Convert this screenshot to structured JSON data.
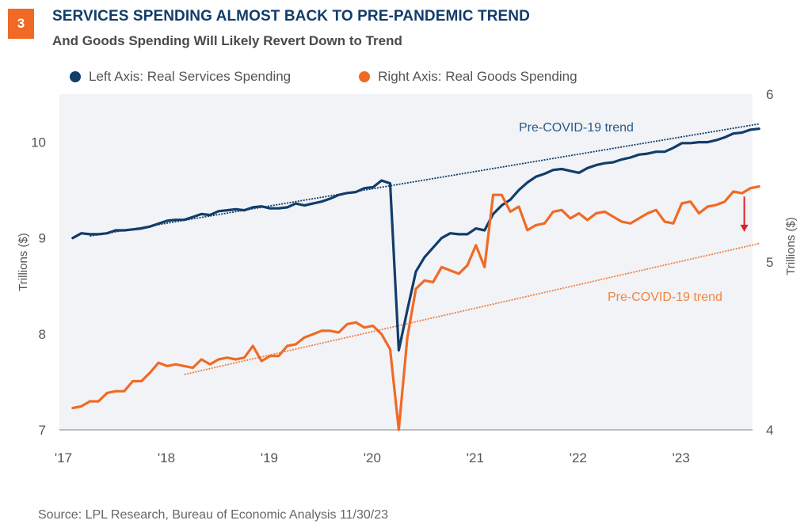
{
  "header": {
    "badge": "3",
    "title": "SERVICES SPENDING ALMOST BACK TO PRE-PANDEMIC TREND",
    "subtitle": "And Goods Spending Will Likely Revert Down to Trend"
  },
  "legend": [
    {
      "label": "Left Axis: Real Services Spending",
      "color": "#123d6b"
    },
    {
      "label": "Right Axis: Real Goods Spending",
      "color": "#f06a25"
    }
  ],
  "source": "Source: LPL Research, Bureau of Economic Analysis  11/30/23",
  "chart_data": {
    "type": "line",
    "title": "SERVICES SPENDING ALMOST BACK TO PRE-PANDEMIC TREND",
    "subtitle": "And Goods Spending Will Likely Revert Down to Trend",
    "x_start": "2017-02",
    "x_end": "2023-10",
    "frequency": "monthly",
    "x_ticks": [
      "'17",
      "'18",
      "'19",
      "'20",
      "'21",
      "'22",
      "'23"
    ],
    "xlim": [
      "2017-01",
      "2023-12"
    ],
    "y_left": {
      "label": "Trillions ($)",
      "lim": [
        7,
        10.5
      ],
      "ticks": [
        "7",
        "8",
        "9",
        "10"
      ]
    },
    "y_right": {
      "label": "Trillions ($)",
      "lim": [
        4,
        6
      ],
      "ticks": [
        "4",
        "5",
        "6"
      ]
    },
    "background": "#f1f3f6",
    "grid": false,
    "legend_position": "top",
    "series": [
      {
        "name": "Left Axis: Real Services Spending",
        "axis": "left",
        "color": "#123d6b",
        "values": [
          9.0,
          9.05,
          9.04,
          9.04,
          9.05,
          9.08,
          9.08,
          9.09,
          9.1,
          9.12,
          9.15,
          9.18,
          9.19,
          9.19,
          9.22,
          9.25,
          9.24,
          9.28,
          9.29,
          9.3,
          9.29,
          9.32,
          9.33,
          9.31,
          9.31,
          9.32,
          9.36,
          9.34,
          9.36,
          9.38,
          9.41,
          9.45,
          9.47,
          9.48,
          9.52,
          9.53,
          9.6,
          9.57,
          7.83,
          8.25,
          8.65,
          8.8,
          8.9,
          9.0,
          9.05,
          9.04,
          9.04,
          9.1,
          9.08,
          9.25,
          9.34,
          9.4,
          9.5,
          9.58,
          9.64,
          9.67,
          9.71,
          9.72,
          9.7,
          9.68,
          9.73,
          9.76,
          9.78,
          9.79,
          9.82,
          9.84,
          9.87,
          9.88,
          9.9,
          9.9,
          9.94,
          9.99,
          9.99,
          10.0,
          10.0,
          10.02,
          10.05,
          10.09,
          10.1,
          10.13,
          10.14
        ]
      },
      {
        "name": "Right Axis: Real Goods Spending",
        "axis": "right",
        "color": "#f06a25",
        "values": [
          4.13,
          4.14,
          4.17,
          4.17,
          4.22,
          4.23,
          4.23,
          4.29,
          4.29,
          4.34,
          4.4,
          4.38,
          4.39,
          4.38,
          4.37,
          4.42,
          4.39,
          4.42,
          4.43,
          4.42,
          4.43,
          4.5,
          4.41,
          4.44,
          4.44,
          4.5,
          4.51,
          4.55,
          4.57,
          4.59,
          4.59,
          4.58,
          4.63,
          4.64,
          4.61,
          4.62,
          4.57,
          4.48,
          4.0,
          4.55,
          4.84,
          4.89,
          4.88,
          4.97,
          4.95,
          4.93,
          4.98,
          5.1,
          4.97,
          5.4,
          5.4,
          5.3,
          5.33,
          5.19,
          5.22,
          5.23,
          5.3,
          5.31,
          5.26,
          5.29,
          5.25,
          5.29,
          5.3,
          5.27,
          5.24,
          5.23,
          5.26,
          5.29,
          5.31,
          5.24,
          5.23,
          5.35,
          5.36,
          5.29,
          5.33,
          5.34,
          5.36,
          5.42,
          5.41,
          5.44,
          5.45
        ]
      }
    ],
    "trend_lines": [
      {
        "name": "Services Pre-COVID-19 trend",
        "axis": "left",
        "color": "#123d6b",
        "start": {
          "month": "2017-04",
          "value": 9.02
        },
        "end": {
          "month": "2023-10",
          "value": 10.19
        },
        "label": "Pre-COVID-19 trend"
      },
      {
        "name": "Goods Pre-COVID-19 trend",
        "axis": "right",
        "color": "#f06a25",
        "start": {
          "month": "2018-03",
          "value": 4.33
        },
        "end": {
          "month": "2023-10",
          "value": 5.11
        },
        "label": "Pre-COVID-19 trend"
      }
    ],
    "annotations": [
      {
        "type": "arrow-down",
        "color": "#e0202e",
        "month": "2023-08",
        "from_value_right": 5.39,
        "to_value_right": 5.18
      }
    ]
  }
}
